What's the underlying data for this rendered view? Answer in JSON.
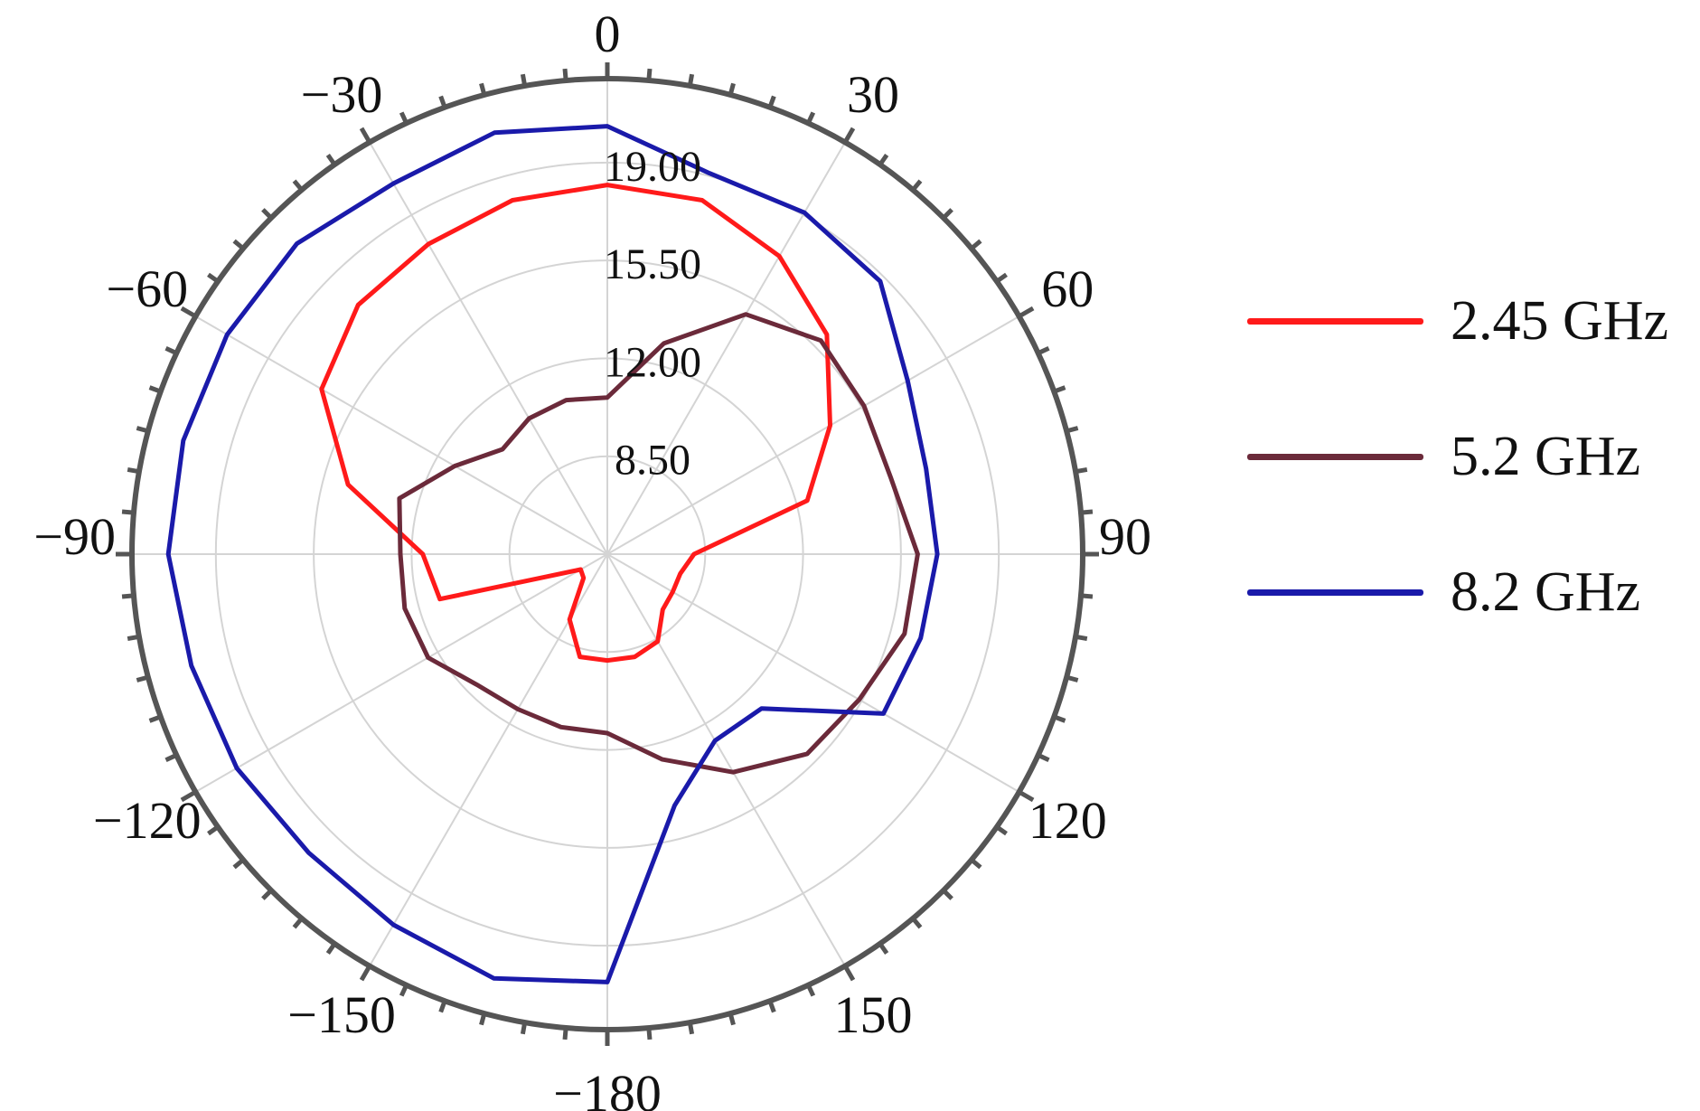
{
  "chart_data": {
    "type": "polar-line",
    "angle_ticks": [
      {
        "angle": 0,
        "label": "0"
      },
      {
        "angle": 30,
        "label": "30"
      },
      {
        "angle": 60,
        "label": "60"
      },
      {
        "angle": 90,
        "label": "90"
      },
      {
        "angle": 120,
        "label": "120"
      },
      {
        "angle": 150,
        "label": "150"
      },
      {
        "angle": 180,
        "label": "−180"
      },
      {
        "angle": -150,
        "label": "−150"
      },
      {
        "angle": -120,
        "label": "−120"
      },
      {
        "angle": -90,
        "label": "−90"
      },
      {
        "angle": -60,
        "label": "−60"
      },
      {
        "angle": -30,
        "label": "−30"
      }
    ],
    "radial_ticks": [
      {
        "value": 8.5,
        "label": "8.50"
      },
      {
        "value": 12.0,
        "label": "12.00"
      },
      {
        "value": 15.5,
        "label": "15.50"
      },
      {
        "value": 19.0,
        "label": "19.00"
      }
    ],
    "rlim": [
      5.0,
      22.0
    ],
    "grid": true,
    "legend_position": "right",
    "series": [
      {
        "name": "2.45 GHz",
        "color": "#ff1a1a",
        "angles": [
          -180,
          -165,
          -150,
          -135,
          -120,
          -105,
          -90,
          -75,
          -60,
          -45,
          -30,
          -15,
          0,
          15,
          30,
          45,
          60,
          75,
          90,
          105,
          120,
          135,
          150,
          165,
          180
        ],
        "values": [
          8.8,
          8.8,
          7.7,
          6.2,
          6.1,
          11.2,
          11.6,
          14.6,
          16.8,
          17.6,
          17.8,
          18.1,
          18.2,
          18.1,
          17.3,
          16.1,
          14.2,
          12.4,
          8.1,
          7.7,
          7.7,
          7.8,
          8.6,
          8.8,
          8.8
        ]
      },
      {
        "name": "5.2 GHz",
        "color": "#6b2a3a",
        "angles": [
          -180,
          -165,
          -150,
          -135,
          -120,
          -105,
          -90,
          -75,
          -60,
          -45,
          -30,
          -15,
          0,
          15,
          30,
          45,
          60,
          75,
          90,
          105,
          120,
          135,
          150,
          165,
          180
        ],
        "values": [
          11.4,
          11.4,
          11.4,
          11.6,
          12.4,
          12.5,
          12.4,
          12.7,
          11.3,
          10.3,
          10.6,
          10.7,
          10.6,
          12.8,
          14.9,
          15.8,
          15.6,
          15.5,
          16.1,
          16.0,
          15.4,
          15.1,
          14.0,
          12.6,
          11.4
        ]
      },
      {
        "name": "8.2 GHz",
        "color": "#1a1aaa",
        "angles": [
          -180,
          -165,
          -150,
          -135,
          -120,
          -105,
          -90,
          -75,
          -60,
          -45,
          -30,
          -15,
          0,
          15,
          30,
          45,
          60,
          75,
          90,
          105,
          120,
          135,
          150,
          165,
          180
        ],
        "values": [
          20.3,
          20.7,
          20.3,
          20.1,
          20.3,
          20.4,
          20.7,
          20.7,
          20.7,
          20.7,
          20.3,
          20.6,
          20.3,
          19.1,
          19.1,
          18.8,
          17.4,
          16.8,
          16.8,
          16.6,
          16.4,
          12.8,
          12.7,
          14.3,
          20.3
        ]
      }
    ]
  }
}
